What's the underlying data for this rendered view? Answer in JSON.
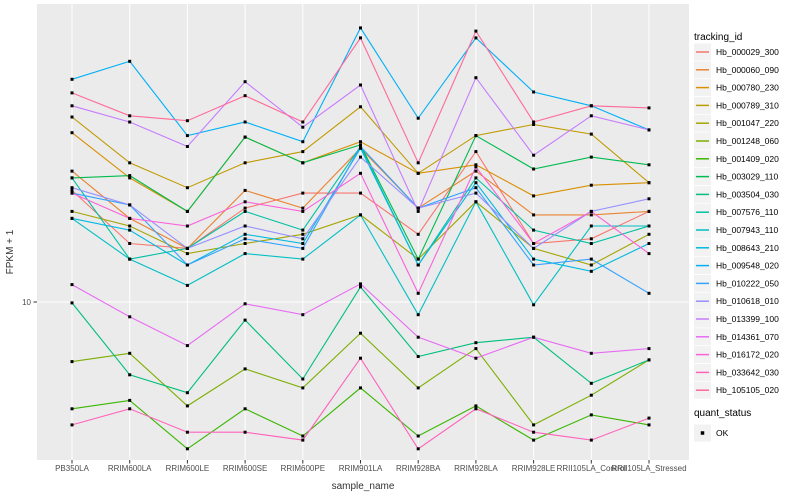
{
  "chart_data": {
    "type": "line",
    "title": "",
    "xlabel": "sample_name",
    "ylabel": "FPKM + 1",
    "y_scale": "log10",
    "y_tick_labels": [
      "10"
    ],
    "y_tick_values": [
      10
    ],
    "ylim": [
      1.8,
      260
    ],
    "grid": "major-only",
    "panel_bg": "#EBEBEB",
    "grid_color": "#FFFFFF",
    "tick_color": "#333333",
    "tick_label_color": "#4D4D4D",
    "marker": "black-square",
    "marker_color": "#000000",
    "categories": [
      "PB350LA",
      "RRIM600LA",
      "RRIM600LE",
      "RRIM600SE",
      "RRIM600PE",
      "RRIM901LA",
      "RRIM928BA",
      "RRIM928LA",
      "RRIM928LE",
      "RRII105LA_Control",
      "RRII105LA_Stressed"
    ],
    "series": [
      {
        "name": "Hb_000029_300",
        "color": "#F8766D",
        "values": [
          34,
          19,
          18,
          28,
          33,
          33,
          21,
          52,
          19,
          20,
          27
        ]
      },
      {
        "name": "Hb_000060_090",
        "color": "#EA8331",
        "values": [
          42,
          25,
          18,
          34,
          28,
          54,
          28,
          42,
          26,
          26,
          27
        ]
      },
      {
        "name": "Hb_000780_230",
        "color": "#D89000",
        "values": [
          64,
          39,
          27,
          61,
          46,
          58,
          41,
          45,
          32,
          36,
          37
        ]
      },
      {
        "name": "Hb_000789_310",
        "color": "#C09B00",
        "values": [
          76,
          46,
          35,
          46,
          52,
          85,
          41,
          62,
          70,
          63,
          37
        ]
      },
      {
        "name": "Hb_001047_220",
        "color": "#A3A500",
        "values": [
          27,
          23,
          17,
          19,
          21,
          26,
          16,
          30,
          18,
          15,
          21
        ]
      },
      {
        "name": "Hb_001248_060",
        "color": "#7CAE00",
        "values": [
          5.2,
          5.7,
          3.2,
          4.8,
          3.9,
          7.1,
          3.9,
          6.0,
          2.6,
          3.6,
          5.3
        ]
      },
      {
        "name": "Hb_001409_020",
        "color": "#39B600",
        "values": [
          3.1,
          3.4,
          2.0,
          3.1,
          2.3,
          3.9,
          2.3,
          3.2,
          2.2,
          2.9,
          2.6
        ]
      },
      {
        "name": "Hb_003029_110",
        "color": "#00BB4E",
        "values": [
          39,
          40,
          27,
          61,
          46,
          56,
          16,
          62,
          43,
          49,
          45
        ]
      },
      {
        "name": "Hb_003504_030",
        "color": "#00BF7D",
        "values": [
          9.9,
          4.5,
          3.7,
          8.2,
          4.3,
          11.8,
          5.5,
          6.4,
          6.8,
          4.1,
          5.3
        ]
      },
      {
        "name": "Hb_007576_110",
        "color": "#00C1A3",
        "values": [
          39,
          16,
          18,
          27,
          22,
          55,
          15,
          39,
          22,
          19,
          23
        ]
      },
      {
        "name": "Hb_007943_110",
        "color": "#00BFC4",
        "values": [
          25,
          16,
          12,
          17,
          16,
          26,
          8.7,
          30,
          9.7,
          23,
          23
        ]
      },
      {
        "name": "Hb_008643_210",
        "color": "#00BAE0",
        "values": [
          25,
          22,
          15,
          21,
          19,
          54,
          15,
          37,
          16,
          14,
          19
        ]
      },
      {
        "name": "Hb_009548_020",
        "color": "#00B0F6",
        "values": [
          115,
          140,
          62,
          72,
          58,
          202,
          75,
          181,
          100,
          86,
          66
        ]
      },
      {
        "name": "Hb_010222_050",
        "color": "#35A2FF",
        "values": [
          33,
          29,
          15,
          20,
          18,
          55,
          28,
          35,
          15,
          16,
          11
        ]
      },
      {
        "name": "Hb_010618_010",
        "color": "#9590FF",
        "values": [
          35,
          29,
          18,
          23,
          20,
          49,
          28,
          33,
          18,
          27,
          31
        ]
      },
      {
        "name": "Hb_013399_100",
        "color": "#C77CFF",
        "values": [
          86,
          72,
          55,
          112,
          68,
          108,
          27,
          117,
          50,
          77,
          66
        ]
      },
      {
        "name": "Hb_014361_070",
        "color": "#E76BF3",
        "values": [
          12.1,
          8.5,
          6.2,
          9.8,
          8.7,
          12.2,
          6.8,
          5.4,
          6.8,
          5.7,
          6.0
        ]
      },
      {
        "name": "Hb_016172_020",
        "color": "#FA62DB",
        "values": [
          33,
          25,
          23,
          30,
          27,
          41,
          11,
          44,
          19,
          27,
          17
        ]
      },
      {
        "name": "Hb_033642_030",
        "color": "#FF62BC",
        "values": [
          2.6,
          3.1,
          2.4,
          2.4,
          2.2,
          5.4,
          2.0,
          3.1,
          2.4,
          2.2,
          2.8
        ]
      },
      {
        "name": "Hb_105105_020",
        "color": "#FF6A98",
        "values": [
          99,
          77,
          73,
          96,
          72,
          181,
          46,
          195,
          72,
          86,
          84
        ]
      }
    ],
    "legend": {
      "title": "tracking_id",
      "position": "right"
    },
    "quant_legend": {
      "title": "quant_status",
      "items": [
        "OK"
      ]
    }
  }
}
